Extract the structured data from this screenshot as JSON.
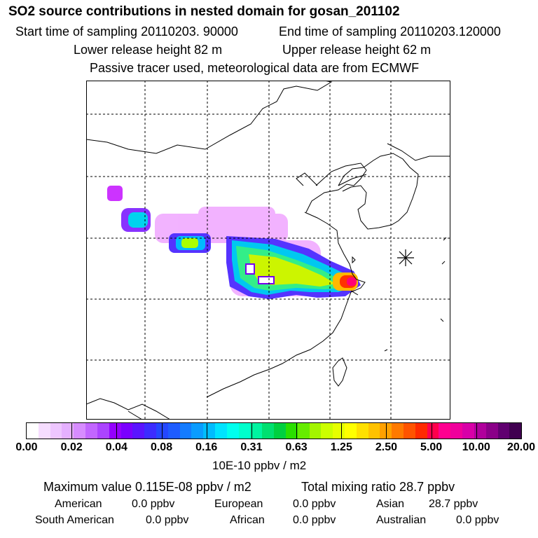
{
  "header": {
    "title": "SO2 source contributions in nested domain for gosan_201102",
    "start_time": "Start time of sampling 20110203. 90000",
    "end_time": "End time of sampling 20110203.120000",
    "lower_release": "Lower release height   82 m",
    "upper_release": "Upper release height   62 m",
    "tracer_note": "Passive tracer used, meteorological data are from ECMWF"
  },
  "map": {
    "grid": "dashed",
    "receptor_symbol": "asterisk-star",
    "plume_colors": [
      "#ff66ff",
      "#9900ff",
      "#3333ff",
      "#00ccff",
      "#00ff99",
      "#66ff00",
      "#ccff00",
      "#ffcc00",
      "#ff5500",
      "#ff0066"
    ]
  },
  "colorbar": {
    "colors": [
      "#ffffff",
      "#f6ddff",
      "#eec6ff",
      "#e5b0ff",
      "#d78cff",
      "#c266ff",
      "#ab44ff",
      "#9400ff",
      "#7a00ff",
      "#5a14ff",
      "#3c2cff",
      "#2447ff",
      "#1e5cff",
      "#147cff",
      "#0a9cff",
      "#00bcff",
      "#00e3ff",
      "#00ffee",
      "#00ffcc",
      "#00f5a0",
      "#00e070",
      "#00d040",
      "#2adf00",
      "#66ec00",
      "#a3f500",
      "#ccff00",
      "#e6ff00",
      "#ffff00",
      "#ffe000",
      "#ffc200",
      "#ffa100",
      "#ff7a00",
      "#ff5400",
      "#ff2a00",
      "#ff004c",
      "#ff0090",
      "#f0009c",
      "#d800a8",
      "#b0009c",
      "#8a0088",
      "#600070",
      "#400050"
    ],
    "ticks": [
      "0.00",
      "0.02",
      "0.04",
      "0.08",
      "0.16",
      "0.31",
      "0.63",
      "1.25",
      "2.50",
      "5.00",
      "10.00",
      "20.00"
    ],
    "unit": "10E-10 ppbv / m2"
  },
  "summary": {
    "max_value": "Maximum value  0.115E-08 ppbv / m2",
    "total_mixing": "Total mixing ratio       28.7 ppbv",
    "contributions": [
      {
        "region": "American",
        "value": "0.0 ppbv"
      },
      {
        "region": "European",
        "value": "0.0 ppbv"
      },
      {
        "region": "Asian",
        "value": "28.7 ppbv"
      },
      {
        "region": "South American",
        "value": "0.0 ppbv"
      },
      {
        "region": "African",
        "value": "0.0 ppbv"
      },
      {
        "region": "Australian",
        "value": "0.0 ppbv"
      }
    ]
  }
}
